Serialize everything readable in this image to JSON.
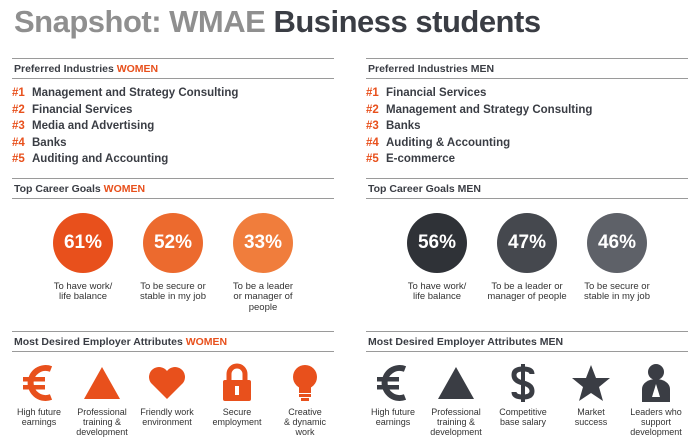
{
  "title": {
    "part1": "Snapshot: WMAE",
    "part2": "Business students"
  },
  "women": {
    "industries_head": {
      "label": "Preferred Industries",
      "gender": "WOMEN"
    },
    "industries": [
      {
        "rank": "#1",
        "name": "Management and Strategy Consulting"
      },
      {
        "rank": "#2",
        "name": "Financial Services"
      },
      {
        "rank": "#3",
        "name": "Media and Advertising"
      },
      {
        "rank": "#4",
        "name": "Banks"
      },
      {
        "rank": "#5",
        "name": "Auditing and Accounting"
      }
    ],
    "goals_head": {
      "label": "Top Career Goals",
      "gender": "WOMEN"
    },
    "goals": [
      {
        "pct": "61%",
        "line1": "To have work/",
        "line2": "life balance",
        "line3": "",
        "color": "#e8501c"
      },
      {
        "pct": "52%",
        "line1": "To be secure or",
        "line2": "stable in my job",
        "line3": "",
        "color": "#ec6a2e"
      },
      {
        "pct": "33%",
        "line1": "To be a leader",
        "line2": "or manager of",
        "line3": "people",
        "color": "#f07d3c"
      }
    ],
    "attrs_head": {
      "label": "Most Desired Employer Attributes",
      "gender": "WOMEN"
    },
    "attributes": [
      {
        "icon": "euro-icon",
        "line1": "High future",
        "line2": "earnings",
        "line3": ""
      },
      {
        "icon": "triangle-icon",
        "line1": "Professional",
        "line2": "training &",
        "line3": "development"
      },
      {
        "icon": "heart-icon",
        "line1": "Friendly work",
        "line2": "environment",
        "line3": ""
      },
      {
        "icon": "lock-icon",
        "line1": "Secure",
        "line2": "employment",
        "line3": ""
      },
      {
        "icon": "lightbulb-icon",
        "line1": "Creative",
        "line2": "& dynamic",
        "line3": "work"
      }
    ],
    "accent": "#e8501c"
  },
  "men": {
    "industries_head": {
      "label": "Preferred Industries",
      "gender": "MEN"
    },
    "industries": [
      {
        "rank": "#1",
        "name": "Financial Services"
      },
      {
        "rank": "#2",
        "name": "Management and Strategy Consulting"
      },
      {
        "rank": "#3",
        "name": "Banks"
      },
      {
        "rank": "#4",
        "name": "Auditing & Accounting"
      },
      {
        "rank": "#5",
        "name": "E-commerce"
      }
    ],
    "goals_head": {
      "label": "Top Career Goals",
      "gender": "MEN"
    },
    "goals": [
      {
        "pct": "56%",
        "line1": "To have work/",
        "line2": "life balance",
        "line3": "",
        "color": "#2f3237"
      },
      {
        "pct": "47%",
        "line1": "To be a leader or",
        "line2": "manager of people",
        "line3": "",
        "color": "#45484e"
      },
      {
        "pct": "46%",
        "line1": "To be secure or",
        "line2": "stable in my job",
        "line3": "",
        "color": "#5e6168"
      }
    ],
    "attrs_head": {
      "label": "Most Desired Employer Attributes",
      "gender": "MEN"
    },
    "attributes": [
      {
        "icon": "euro-icon",
        "line1": "High future",
        "line2": "earnings",
        "line3": ""
      },
      {
        "icon": "triangle-icon",
        "line1": "Professional",
        "line2": "training &",
        "line3": "development"
      },
      {
        "icon": "dollar-icon",
        "line1": "Competitive",
        "line2": "base salary",
        "line3": ""
      },
      {
        "icon": "star-icon",
        "line1": "Market",
        "line2": "success",
        "line3": ""
      },
      {
        "icon": "leader-icon",
        "line1": "Leaders who",
        "line2": "support",
        "line3": "development"
      }
    ],
    "accent": "#3a3d44"
  }
}
